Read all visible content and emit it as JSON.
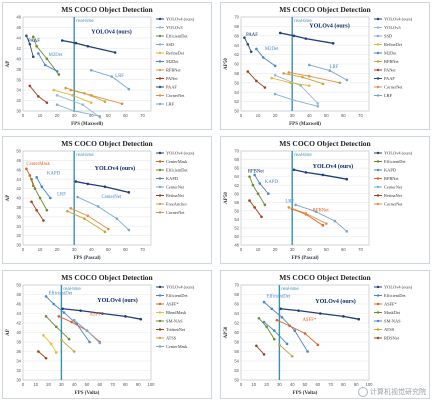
{
  "watermark": {
    "text": "计算机视觉研究院"
  },
  "chart_data": [
    {
      "type": "line",
      "title": "MS COCO Object Detection",
      "xlabel": "FPS (Maxwell)",
      "ylabel": "AP",
      "xlim": [
        0,
        75
      ],
      "ylim": [
        30,
        48
      ],
      "xticks": [
        0,
        10,
        20,
        30,
        40,
        50,
        60,
        70
      ],
      "yticks": [
        30,
        32,
        34,
        36,
        38,
        40,
        42,
        44,
        46,
        48
      ],
      "vline": {
        "x": 30,
        "label": "real-time"
      },
      "annotations": [
        {
          "text": "YOLOv4 (ours)",
          "x": 40,
          "y": 44.8,
          "color": "#0a2a6b"
        },
        {
          "text": "PAAF",
          "x": 3,
          "y": 43.2,
          "color": "#0a2a6b"
        },
        {
          "text": "M2Det",
          "x": 15,
          "y": 40.5,
          "color": "#4a86c8"
        },
        {
          "text": "LRF",
          "x": 54,
          "y": 36.5,
          "color": "#4a86c8"
        }
      ],
      "series": [
        {
          "name": "YOLOv4 (ours)",
          "color": "#1f3f7a",
          "x": [
            23,
            31,
            38,
            54
          ],
          "y": [
            43.5,
            43.0,
            42.4,
            41.2
          ]
        },
        {
          "name": "YOLOv3",
          "color": "#9bb7d4",
          "x": [
            20,
            35,
            45
          ],
          "y": [
            33.0,
            31.2,
            28.8
          ]
        },
        {
          "name": "EfficientDet",
          "color": "#6a8b2f",
          "x": [
            6,
            8,
            14,
            21
          ],
          "y": [
            44.2,
            42.4,
            40.0,
            37.0
          ]
        },
        {
          "name": "SSD",
          "color": "#7fb2cf",
          "x": [
            20,
            30,
            45
          ],
          "y": [
            31.2,
            30.0,
            29.0
          ]
        },
        {
          "name": "RefineDet",
          "color": "#e0b83a",
          "x": [
            18,
            29,
            40
          ],
          "y": [
            34.0,
            33.0,
            31.6
          ]
        },
        {
          "name": "M2Det",
          "color": "#4a86c8",
          "x": [
            9,
            13,
            20
          ],
          "y": [
            41.0,
            38.8,
            37.6
          ]
        },
        {
          "name": "RFBNet",
          "color": "#c9a43a",
          "x": [
            25,
            36,
            48
          ],
          "y": [
            34.4,
            33.4,
            31.8
          ]
        },
        {
          "name": "PANet",
          "color": "#a04020",
          "x": [
            4,
            9,
            14
          ],
          "y": [
            34.8,
            32.8,
            31.6
          ]
        },
        {
          "name": "PAAF",
          "color": "#2f4f6f",
          "x": [
            2,
            4,
            6
          ],
          "y": [
            44.4,
            42.8,
            40.4
          ]
        },
        {
          "name": "CornerNet",
          "color": "#e09040",
          "x": [
            28,
            40,
            58
          ],
          "y": [
            34.0,
            33.0,
            31.4
          ]
        },
        {
          "name": "LRF",
          "color": "#78a8c8",
          "x": [
            40,
            52,
            62
          ],
          "y": [
            37.8,
            36.6,
            34.2
          ]
        }
      ]
    },
    {
      "type": "line",
      "title": "MS COCO Object Detection",
      "xlabel": "FPS (Maxwell)",
      "ylabel": "AP50",
      "xlim": [
        0,
        75
      ],
      "ylim": [
        50,
        70
      ],
      "xticks": [
        0,
        10,
        20,
        30,
        40,
        50,
        60,
        70
      ],
      "yticks": [
        50,
        52,
        54,
        56,
        58,
        60,
        62,
        64,
        66,
        68,
        70
      ],
      "vline": {
        "x": 30,
        "label": "real-time"
      },
      "annotations": [
        {
          "text": "YOLOv4 (ours)",
          "x": 40,
          "y": 67.8,
          "color": "#0a2a6b"
        },
        {
          "text": "PAAF",
          "x": 3,
          "y": 66.0,
          "color": "#0a2a6b"
        },
        {
          "text": "M2Det",
          "x": 14,
          "y": 63.0,
          "color": "#4a86c8"
        },
        {
          "text": "LRF",
          "x": 52,
          "y": 59.2,
          "color": "#4a86c8"
        }
      ],
      "series": [
        {
          "name": "YOLOv4 (ours)",
          "color": "#1f3f7a",
          "x": [
            23,
            31,
            38,
            54
          ],
          "y": [
            66.6,
            66.0,
            65.4,
            64.4
          ]
        },
        {
          "name": "YOLOv3",
          "color": "#9bb7d4",
          "x": [
            20,
            35,
            45
          ],
          "y": [
            57.6,
            55.4,
            51.6
          ]
        },
        {
          "name": "SSD",
          "color": "#7fb2cf",
          "x": [
            20,
            30,
            45
          ],
          "y": [
            53.6,
            52.4,
            51.0
          ]
        },
        {
          "name": "RefineDet",
          "color": "#e0b83a",
          "x": [
            18,
            29,
            40
          ],
          "y": [
            57.0,
            56.0,
            55.4
          ]
        },
        {
          "name": "M2Det",
          "color": "#4a86c8",
          "x": [
            9,
            13,
            20
          ],
          "y": [
            63.2,
            61.4,
            59.6
          ]
        },
        {
          "name": "RFBNet",
          "color": "#c9a43a",
          "x": [
            25,
            36,
            48
          ],
          "y": [
            58.0,
            57.2,
            55.8
          ]
        },
        {
          "name": "PANet",
          "color": "#a04020",
          "x": [
            4,
            9,
            14
          ],
          "y": [
            58.4,
            56.4,
            55.0
          ]
        },
        {
          "name": "PAAF",
          "color": "#2f4f6f",
          "x": [
            2,
            4,
            6
          ],
          "y": [
            65.6,
            64.2,
            62.6
          ]
        },
        {
          "name": "CornerNet",
          "color": "#e09040",
          "x": [
            28,
            40,
            58
          ],
          "y": [
            58.2,
            57.4,
            56.0
          ]
        },
        {
          "name": "LRF",
          "color": "#78a8c8",
          "x": [
            40,
            52,
            62
          ],
          "y": [
            59.8,
            58.6,
            56.6
          ]
        }
      ]
    },
    {
      "type": "line",
      "title": "MS COCO Object Detection",
      "xlabel": "FPS (Pascal)",
      "ylabel": "AP",
      "xlim": [
        0,
        75
      ],
      "ylim": [
        30,
        50
      ],
      "xticks": [
        0,
        10,
        20,
        30,
        40,
        50,
        60,
        70
      ],
      "yticks": [
        30,
        32,
        34,
        36,
        38,
        40,
        42,
        44,
        46,
        48,
        50
      ],
      "vline": {
        "x": 30,
        "label": "real-time"
      },
      "annotations": [
        {
          "text": "CenterMask",
          "x": 2,
          "y": 47.0,
          "color": "#e06020"
        },
        {
          "text": "KAPD",
          "x": 14,
          "y": 45.0,
          "color": "#4a86c8"
        },
        {
          "text": "YOLOv4 (ours)",
          "x": 42,
          "y": 46.0,
          "color": "#0a2a6b"
        },
        {
          "text": "LRF",
          "x": 20,
          "y": 40.5,
          "color": "#4a86c8"
        },
        {
          "text": "CenterNet",
          "x": 46,
          "y": 40.0,
          "color": "#4a86c8"
        }
      ],
      "series": [
        {
          "name": "YOLOv4 (ours)",
          "color": "#1f3f7a",
          "x": [
            31,
            38,
            48,
            62
          ],
          "y": [
            43.5,
            43.0,
            42.4,
            41.2
          ]
        },
        {
          "name": "CenterMask",
          "color": "#e06020",
          "x": [
            2,
            4,
            6
          ],
          "y": [
            46.2,
            44.8,
            42.6
          ]
        },
        {
          "name": "EfficientDet",
          "color": "#6a8b2f",
          "x": [
            5,
            7,
            10,
            14
          ],
          "y": [
            44.0,
            42.0,
            40.0,
            37.4
          ]
        },
        {
          "name": "KAPD",
          "color": "#4a86c8",
          "x": [
            8,
            11,
            16
          ],
          "y": [
            44.4,
            42.4,
            40.0
          ]
        },
        {
          "name": "CenterNet",
          "color": "#78a8c8",
          "x": [
            32,
            44,
            55,
            62
          ],
          "y": [
            40.2,
            38.2,
            35.6,
            33.2
          ]
        },
        {
          "name": "RetinaNet",
          "color": "#a04020",
          "x": [
            5,
            8,
            12
          ],
          "y": [
            39.2,
            37.4,
            35.2
          ]
        },
        {
          "name": "FreeAnchor",
          "color": "#c9a43a",
          "x": [
            26,
            36,
            48
          ],
          "y": [
            37.2,
            35.6,
            32.8
          ]
        },
        {
          "name": "CornerNet",
          "color": "#e09040",
          "x": [
            28,
            38,
            50
          ],
          "y": [
            37.8,
            36.2,
            33.4
          ]
        }
      ]
    },
    {
      "type": "line",
      "title": "MS COCO Object Detection",
      "xlabel": "FPS (Pascal)",
      "ylabel": "AP50",
      "xlim": [
        0,
        75
      ],
      "ylim": [
        48,
        70
      ],
      "xticks": [
        0,
        10,
        20,
        30,
        40,
        50,
        60,
        70
      ],
      "yticks": [
        48,
        50,
        52,
        54,
        56,
        58,
        60,
        62,
        64,
        66,
        68,
        70
      ],
      "vline": {
        "x": 30,
        "label": "real-time"
      },
      "annotations": [
        {
          "text": "RFBNet",
          "x": 4,
          "y": 65.0,
          "color": "#0a2a6b"
        },
        {
          "text": "KAPD",
          "x": 14,
          "y": 62.5,
          "color": "#4a86c8"
        },
        {
          "text": "YOLOv4 (ours)",
          "x": 42,
          "y": 66.0,
          "color": "#0a2a6b"
        },
        {
          "text": "LRF",
          "x": 26,
          "y": 58.0,
          "color": "#4a86c8"
        },
        {
          "text": "RFBNet",
          "x": 42,
          "y": 55.8,
          "color": "#e06020"
        }
      ],
      "series": [
        {
          "name": "YOLOv4 (ours)",
          "color": "#1f3f7a",
          "x": [
            31,
            38,
            48,
            62
          ],
          "y": [
            65.6,
            65.0,
            64.4,
            63.4
          ]
        },
        {
          "name": "EfficientDet",
          "color": "#6a8b2f",
          "x": [
            5,
            7,
            10,
            14
          ],
          "y": [
            64.0,
            62.0,
            60.0,
            57.4
          ]
        },
        {
          "name": "KAPD",
          "color": "#4a86c8",
          "x": [
            8,
            11,
            16
          ],
          "y": [
            64.4,
            62.4,
            60.0
          ]
        },
        {
          "name": "RFBNet",
          "color": "#e06020",
          "x": [
            30,
            38,
            48
          ],
          "y": [
            56.4,
            55.2,
            52.6
          ]
        },
        {
          "name": "CenterNet",
          "color": "#78a8c8",
          "x": [
            32,
            44,
            55,
            62
          ],
          "y": [
            57.4,
            55.8,
            53.6,
            51.2
          ]
        },
        {
          "name": "RetinaNet",
          "color": "#a04020",
          "x": [
            5,
            8,
            12
          ],
          "y": [
            58.4,
            56.8,
            54.6
          ]
        },
        {
          "name": "CornerNet",
          "color": "#e09040",
          "x": [
            28,
            38,
            50
          ],
          "y": [
            56.8,
            55.4,
            53.0
          ]
        }
      ]
    },
    {
      "type": "line",
      "title": "MS COCO Object Detection",
      "xlabel": "FPS (Volta)",
      "ylabel": "AP",
      "xlim": [
        0,
        100
      ],
      "ylim": [
        30,
        50
      ],
      "xticks": [
        0,
        10,
        20,
        30,
        40,
        50,
        60,
        70,
        80,
        90,
        100
      ],
      "yticks": [
        30,
        32,
        34,
        36,
        38,
        40,
        42,
        44,
        46,
        48,
        50
      ],
      "vline": {
        "x": 30,
        "label": "real-time"
      },
      "annotations": [
        {
          "text": "EfficientDet",
          "x": 20,
          "y": 48.0,
          "color": "#4a86c8"
        },
        {
          "text": "YOLOv4 (ours)",
          "x": 58,
          "y": 46.4,
          "color": "#0a2a6b"
        },
        {
          "text": "ASFF*",
          "x": 52,
          "y": 43.6,
          "color": "#e06020"
        }
      ],
      "series": [
        {
          "name": "YOLOv4 (ours)",
          "color": "#1f3f7a",
          "x": [
            31,
            45,
            62,
            80,
            92
          ],
          "y": [
            45.0,
            44.6,
            44.0,
            43.4,
            42.8
          ]
        },
        {
          "name": "EfficientDet",
          "color": "#4a86c8",
          "x": [
            18,
            24,
            32,
            42,
            52
          ],
          "y": [
            47.6,
            46.0,
            44.2,
            41.8,
            38.0
          ]
        },
        {
          "name": "ASFF*",
          "color": "#e06020",
          "x": [
            28,
            38,
            50,
            60
          ],
          "y": [
            43.4,
            42.2,
            40.4,
            38.0
          ]
        },
        {
          "name": "BlendMask",
          "color": "#e0c040",
          "x": [
            16,
            22,
            26
          ],
          "y": [
            39.4,
            37.6,
            35.8
          ]
        },
        {
          "name": "SM-NAS",
          "color": "#6a8b2f",
          "x": [
            18,
            26,
            36
          ],
          "y": [
            43.4,
            41.2,
            38.6
          ]
        },
        {
          "name": "TridentNet",
          "color": "#a04020",
          "x": [
            12,
            18
          ],
          "y": [
            36.0,
            34.6
          ]
        },
        {
          "name": "ATSS",
          "color": "#c9a43a",
          "x": [
            30,
            40
          ],
          "y": [
            38.4,
            36.0
          ]
        },
        {
          "name": "CenterMask",
          "color": "#78a8c8",
          "x": [
            40,
            50,
            60
          ],
          "y": [
            42.6,
            40.4,
            37.8
          ]
        }
      ]
    },
    {
      "type": "line",
      "title": "MS COCO Object Detection",
      "xlabel": "FPS (Volta)",
      "ylabel": "AP50",
      "xlim": [
        0,
        100
      ],
      "ylim": [
        50,
        70
      ],
      "xticks": [
        0,
        10,
        20,
        30,
        40,
        50,
        60,
        70,
        80,
        90,
        100
      ],
      "yticks": [
        50,
        52,
        54,
        56,
        58,
        60,
        62,
        64,
        66,
        68,
        70
      ],
      "vline": {
        "x": 30,
        "label": "real-time"
      },
      "annotations": [
        {
          "text": "EfficientDet",
          "x": 20,
          "y": 67.4,
          "color": "#4a86c8"
        },
        {
          "text": "YOLOv4 (ours)",
          "x": 58,
          "y": 66.2,
          "color": "#0a2a6b"
        },
        {
          "text": "ASFF*",
          "x": 48,
          "y": 62.4,
          "color": "#e06020"
        }
      ],
      "series": [
        {
          "name": "YOLOv4 (ours)",
          "color": "#1f3f7a",
          "x": [
            31,
            45,
            62,
            80,
            92
          ],
          "y": [
            65.0,
            64.6,
            64.0,
            63.4,
            62.8
          ]
        },
        {
          "name": "EfficientDet",
          "color": "#4a86c8",
          "x": [
            18,
            24,
            32,
            42,
            52
          ],
          "y": [
            66.4,
            65.0,
            63.2,
            60.4,
            56.0
          ]
        },
        {
          "name": "ASFF*",
          "color": "#e06020",
          "x": [
            28,
            38,
            50,
            60
          ],
          "y": [
            62.6,
            61.4,
            59.8,
            57.4
          ]
        },
        {
          "name": "MaskDet",
          "color": "#6a8b2f",
          "x": [
            14,
            20,
            26
          ],
          "y": [
            63.0,
            61.2,
            58.6
          ]
        },
        {
          "name": "SM-NAS",
          "color": "#4a86c8",
          "x": [
            18,
            26,
            36
          ],
          "y": [
            62.2,
            60.4,
            57.6
          ]
        },
        {
          "name": "ATSS",
          "color": "#c9a43a",
          "x": [
            30,
            40
          ],
          "y": [
            57.4,
            55.0
          ]
        },
        {
          "name": "RDSNet",
          "color": "#a04020",
          "x": [
            12,
            18
          ],
          "y": [
            57.2,
            55.4
          ]
        }
      ]
    }
  ]
}
